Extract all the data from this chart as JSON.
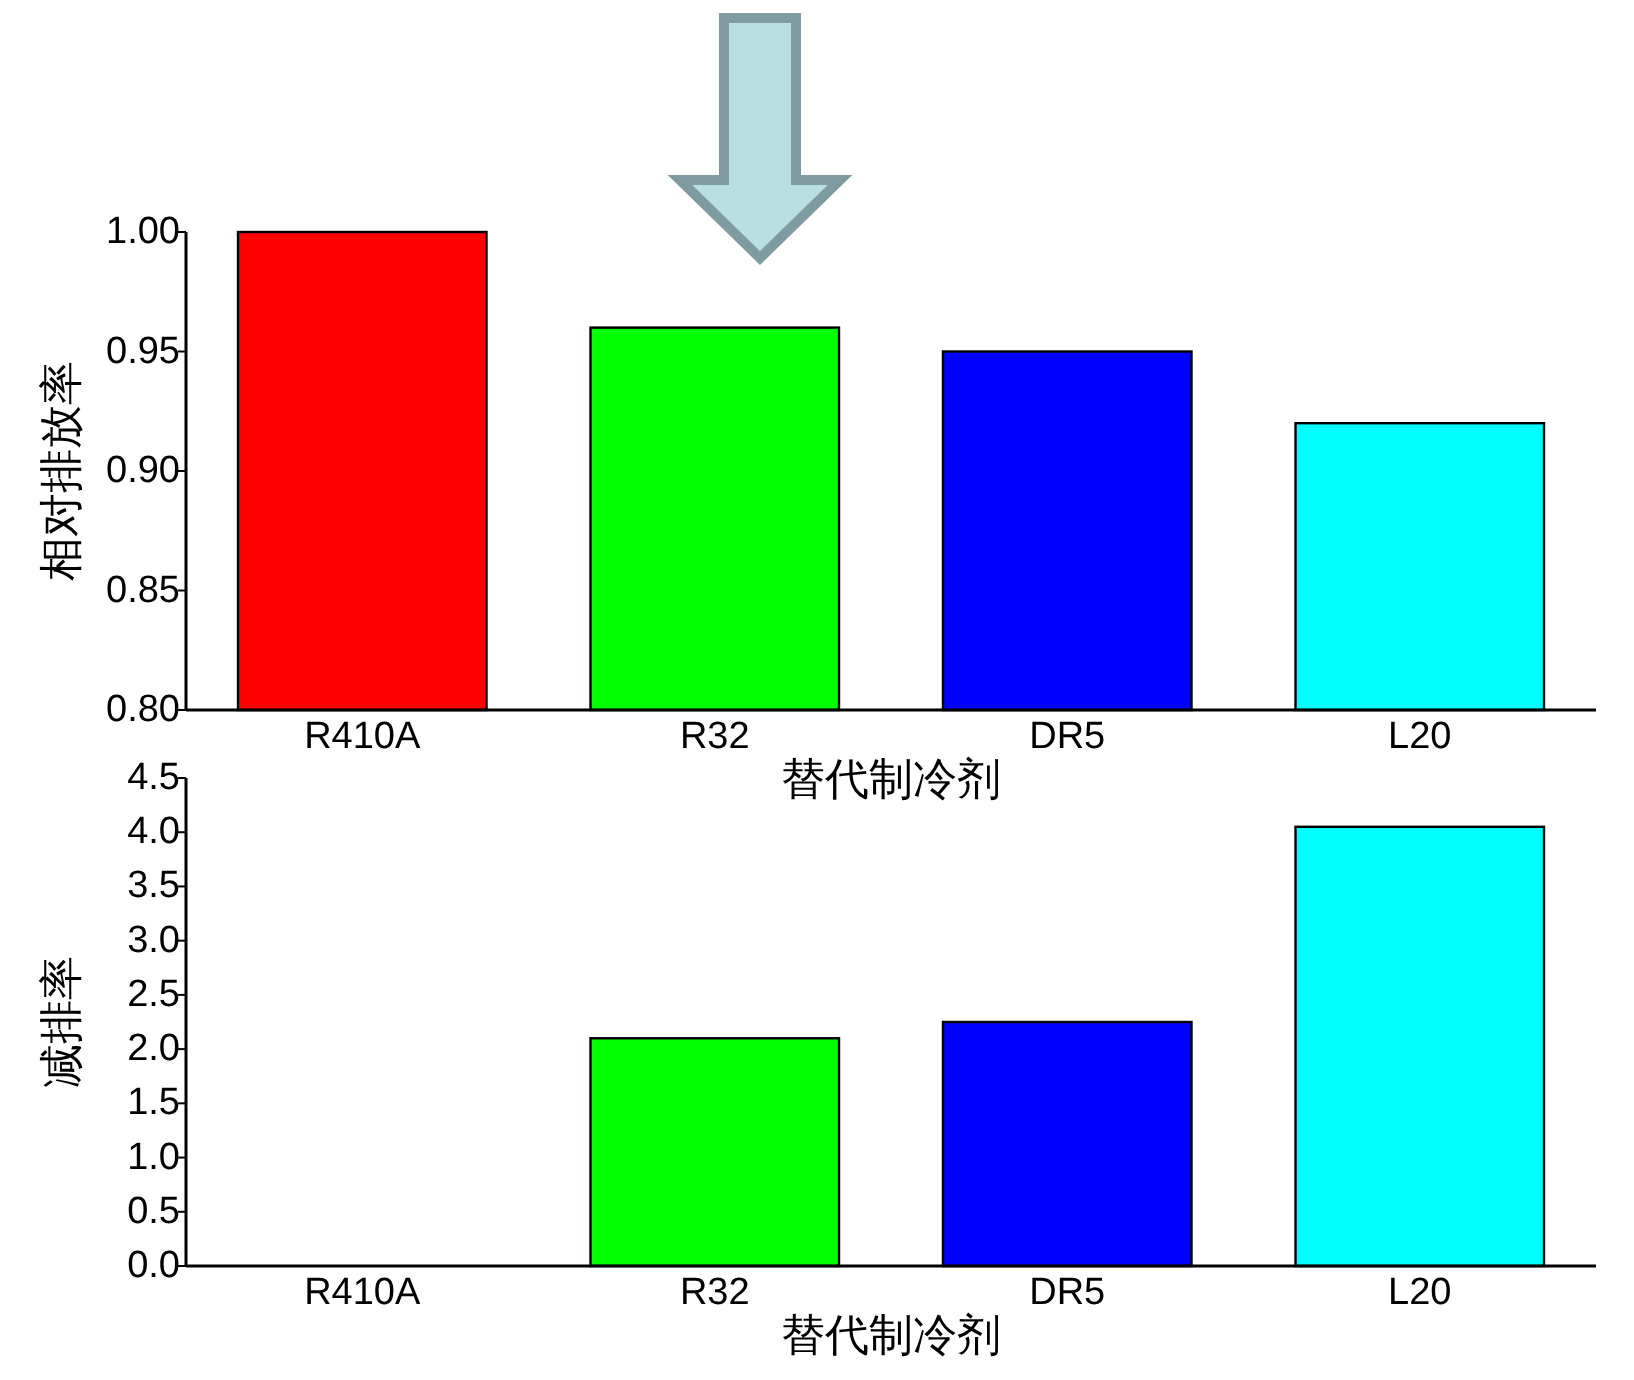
{
  "chart_data": [
    {
      "type": "bar",
      "categories": [
        "R410A",
        "R32",
        "DR5",
        "L20"
      ],
      "values": [
        1.0,
        0.96,
        0.95,
        0.92
      ],
      "colors": [
        "#ff0000",
        "#00ff00",
        "#0000ff",
        "#00ffff"
      ],
      "xlabel": "替代制冷剂",
      "ylabel": "相对排放率",
      "ylim": [
        0.8,
        1.0
      ],
      "yticks": [
        {
          "value": 0.8,
          "label": "0.80"
        },
        {
          "value": 0.85,
          "label": "0.85"
        },
        {
          "value": 0.9,
          "label": "0.90"
        },
        {
          "value": 0.95,
          "label": "0.95"
        },
        {
          "value": 1.0,
          "label": "1.00"
        }
      ]
    },
    {
      "type": "bar",
      "categories": [
        "R410A",
        "R32",
        "DR5",
        "L20"
      ],
      "values": [
        0,
        2.1,
        2.25,
        4.05
      ],
      "colors": [
        "#ff0000",
        "#00ff00",
        "#0000ff",
        "#00ffff"
      ],
      "xlabel": "替代制冷剂",
      "ylabel": "减排率",
      "ylim": [
        0,
        4.5
      ],
      "yticks": [
        {
          "value": 0,
          "label": "0.0"
        },
        {
          "value": 0.5,
          "label": "0.5"
        },
        {
          "value": 1,
          "label": "1.0"
        },
        {
          "value": 1.5,
          "label": "1.5"
        },
        {
          "value": 2,
          "label": "2.0"
        },
        {
          "value": 2.5,
          "label": "2.5"
        },
        {
          "value": 3,
          "label": "3.0"
        },
        {
          "value": 3.5,
          "label": "3.5"
        },
        {
          "value": 4,
          "label": "4.0"
        },
        {
          "value": 4.5,
          "label": "4.5"
        }
      ]
    }
  ]
}
